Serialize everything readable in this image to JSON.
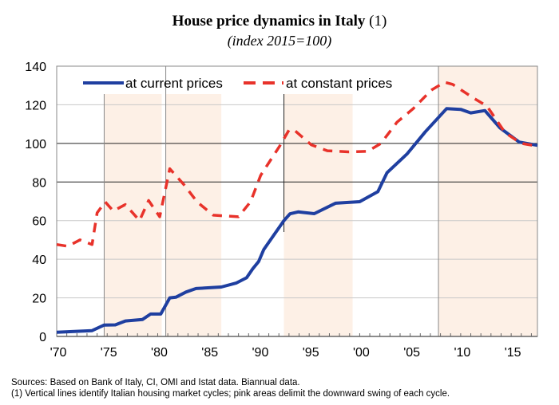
{
  "chart_data": {
    "type": "line",
    "title": "House price dynamics in Italy",
    "title_note": "(1)",
    "subtitle": "(index 2015=100)",
    "xlabel": "",
    "ylabel": "",
    "xlim": [
      1970,
      2017.6
    ],
    "ylim": [
      0,
      140
    ],
    "yticks": [
      0,
      20,
      40,
      60,
      80,
      100,
      120,
      140
    ],
    "xticks": [
      {
        "year": 1970,
        "label": "'70"
      },
      {
        "year": 1975,
        "label": "'75"
      },
      {
        "year": 1980,
        "label": "'80"
      },
      {
        "year": 1985,
        "label": "'85"
      },
      {
        "year": 1990,
        "label": "'90"
      },
      {
        "year": 1995,
        "label": "'95"
      },
      {
        "year": 2000,
        "label": "'00"
      },
      {
        "year": 2005,
        "label": "'05"
      },
      {
        "year": 2010,
        "label": "'10"
      },
      {
        "year": 2015,
        "label": "'15"
      }
    ],
    "grid": true,
    "legend_position": "top",
    "shaded_periods": [
      [
        1974.7,
        1980.4
      ],
      [
        1980.8,
        1986.3
      ],
      [
        1992.5,
        1999.3
      ],
      [
        2007.8,
        2017.6
      ]
    ],
    "cycle_lines": [
      1974.7,
      1980.8,
      1992.5,
      2007.8
    ],
    "series": [
      {
        "name": "at current prices",
        "color": "#1f3fa0",
        "style": "solid",
        "x": [
          1970,
          1973.5,
          1974.7,
          1975.8,
          1976.8,
          1978.5,
          1979.3,
          1980.3,
          1981.2,
          1981.8,
          1982.8,
          1983.8,
          1986.3,
          1987.8,
          1988.8,
          1989.4,
          1990,
          1990.5,
          1991.5,
          1992.5,
          1993.1,
          1993.9,
          1995.5,
          1997.6,
          2000,
          2001.8,
          2002.7,
          2004.7,
          2006.5,
          2008.6,
          2010,
          2011,
          2012.4,
          2013.9,
          2015.8,
          2017.6
        ],
        "y": [
          2.2,
          3,
          5.9,
          6,
          8,
          8.8,
          11.6,
          11.6,
          20,
          20.3,
          23,
          24.8,
          25.6,
          27.7,
          30.4,
          35,
          38.8,
          45,
          52.5,
          60,
          63.5,
          64.5,
          63.6,
          69,
          69.8,
          75,
          84.8,
          94.6,
          106,
          118,
          117.6,
          115.8,
          117,
          108,
          100.7,
          99
        ]
      },
      {
        "name": "at constant prices",
        "color": "#e8322a",
        "style": "dashed",
        "x": [
          1970,
          1971.1,
          1972.3,
          1973.5,
          1974,
          1974.8,
          1975.6,
          1976.8,
          1978.2,
          1979.1,
          1980.2,
          1981.2,
          1982.6,
          1983.9,
          1985.5,
          1988,
          1989.2,
          1990.2,
          1992.1,
          1993,
          1993.5,
          1995.2,
          1996.8,
          1998.9,
          2000.8,
          2002.1,
          2003.7,
          2005.3,
          2007.1,
          2008.4,
          2009.2,
          2011.3,
          2012.6,
          2014.4,
          2016,
          2017.6
        ],
        "y": [
          47.6,
          46.7,
          50,
          47.6,
          64,
          69.7,
          65,
          68.3,
          60,
          70.4,
          62,
          86.9,
          78.6,
          69.7,
          62.8,
          62,
          69.8,
          83.5,
          98.8,
          106.9,
          107,
          99.3,
          96.2,
          95.6,
          95.9,
          100,
          111,
          118,
          127.6,
          131.7,
          130.6,
          123.4,
          119.3,
          105.5,
          100,
          98.6
        ]
      }
    ]
  },
  "footer": {
    "sources": "Sources: Based on Bank of Italy, CI, OMI and Istat data. Biannual data.",
    "note": "(1) Vertical lines identify Italian housing market cycles; pink areas delimit the downward swing of each cycle."
  }
}
